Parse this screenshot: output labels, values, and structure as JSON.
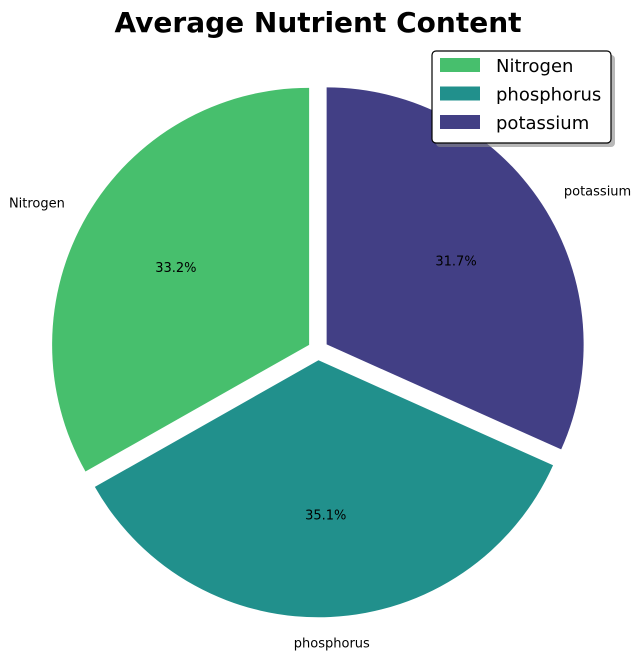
{
  "chart_data": {
    "type": "pie",
    "title": "Average Nutrient Content",
    "categories": [
      "Nitrogen",
      "phosphorus",
      "potassium"
    ],
    "values": [
      33.2,
      35.1,
      31.7
    ],
    "percent_labels": [
      "33.2%",
      "35.1%",
      "31.7%"
    ],
    "colors": [
      "#47bf6d",
      "#21908c",
      "#423f85"
    ],
    "start_angle_deg": 90,
    "direction": "counterclockwise",
    "exploded": true,
    "legend": {
      "placement": "top-right",
      "entries": [
        "Nitrogen",
        "phosphorus",
        "potassium"
      ]
    }
  }
}
